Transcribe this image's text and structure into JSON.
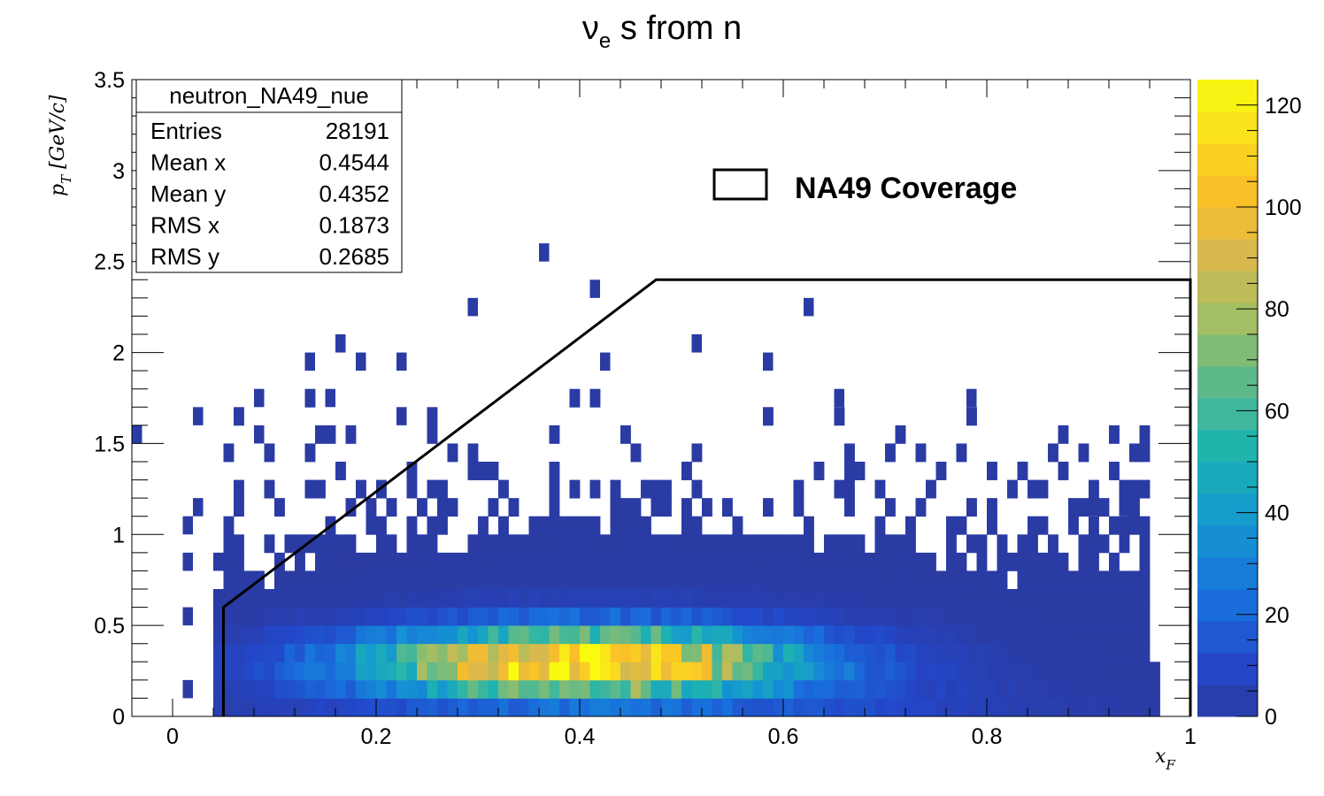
{
  "chart_data": {
    "type": "heatmap",
    "title": {
      "main": "ν",
      "sub": "e",
      "rest": " s from n"
    },
    "xlabel": {
      "main": "x",
      "sub": "F"
    },
    "ylabel": {
      "main": "p",
      "sub": "T",
      "rest": " [GeV/c]"
    },
    "xlim": [
      -0.04,
      1.0
    ],
    "ylim": [
      0,
      3.5
    ],
    "x_ticks": [
      0,
      0.2,
      0.4,
      0.6,
      0.8,
      1
    ],
    "x_tick_labels": [
      "0",
      "0.2",
      "0.4",
      "0.6",
      "0.8",
      "1"
    ],
    "y_ticks": [
      0,
      0.5,
      1,
      1.5,
      2,
      2.5,
      3,
      3.5
    ],
    "y_tick_labels": [
      "0",
      "0.5",
      "1",
      "1.5",
      "2",
      "2.5",
      "3",
      "3.5"
    ],
    "colorbar": {
      "min": 0,
      "max": 125,
      "ticks": [
        0,
        20,
        40,
        60,
        80,
        100,
        120
      ],
      "tick_labels": [
        "0",
        "20",
        "40",
        "60",
        "80",
        "100",
        "120"
      ]
    },
    "bins": {
      "x_edges": [
        -0.04,
        1.0
      ],
      "nx": 104,
      "y_edges": [
        0,
        3.5
      ],
      "ny": 35
    },
    "stats": {
      "name": "neutron_NA49_nue",
      "rows": [
        {
          "label": "Entries",
          "value": "28191"
        },
        {
          "label": "Mean x",
          "value": "0.4544"
        },
        {
          "label": "Mean y",
          "value": "0.4352"
        },
        {
          "label": "RMS x",
          "value": "0.1873"
        },
        {
          "label": "RMS y",
          "value": "0.2685"
        }
      ]
    },
    "coverage_polygon": [
      [
        0.05,
        0
      ],
      [
        0.05,
        0.6
      ],
      [
        0.475,
        2.4
      ],
      [
        1.0,
        2.4
      ],
      [
        1.0,
        0
      ]
    ],
    "legend": [
      {
        "label": "NA49 Coverage",
        "symbol": "box",
        "position": "top-right"
      }
    ],
    "isolated_cells": [
      [
        0.365,
        2.55
      ],
      [
        0.415,
        2.35
      ],
      [
        0.295,
        2.25
      ],
      [
        0.625,
        2.25
      ],
      [
        0.165,
        2.05
      ],
      [
        0.515,
        2.05
      ],
      [
        0.135,
        1.95
      ],
      [
        0.185,
        1.95
      ],
      [
        0.225,
        1.95
      ],
      [
        0.425,
        1.95
      ],
      [
        0.585,
        1.95
      ],
      [
        0.085,
        1.75
      ],
      [
        0.155,
        1.75
      ],
      [
        0.655,
        1.75
      ],
      [
        0.785,
        1.75
      ],
      [
        0.025,
        1.65
      ],
      [
        0.225,
        1.65
      ],
      [
        -0.035,
        1.55
      ],
      [
        0.085,
        1.55
      ],
      [
        0.025,
        1.15
      ],
      [
        0.015,
        1.05
      ],
      [
        0.905,
        1.15
      ],
      [
        0.935,
        1.15
      ],
      [
        0.015,
        0.85
      ],
      [
        0.045,
        0.85
      ],
      [
        0.015,
        0.55
      ],
      [
        0.045,
        0.55
      ],
      [
        0.015,
        0.15
      ]
    ]
  }
}
